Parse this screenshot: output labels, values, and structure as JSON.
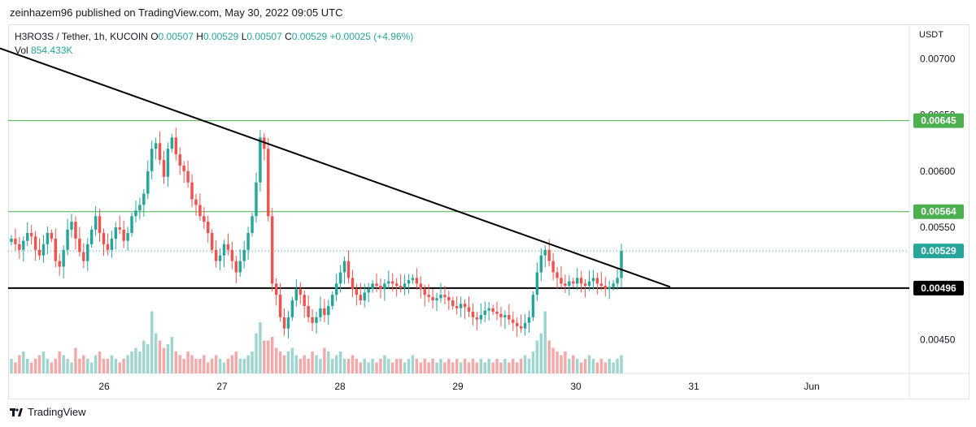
{
  "publisher_line": "zeinhazem96 published on TradingView.com, May 30, 2022 09:05 UTC",
  "legend": {
    "symbol": "H3RO3S / Tether, 1h, KUCOIN",
    "o_label": "O",
    "o_value": "0.00507",
    "h_label": "H",
    "h_value": "0.00529",
    "l_label": "L",
    "l_value": "0.00507",
    "c_label": "C",
    "c_value": "0.00529",
    "change": "+0.00025 (+4.96%)",
    "vol_label": "Vol",
    "vol_value": "854.433K"
  },
  "footer": {
    "brand": "TradingView"
  },
  "colors": {
    "up": "#26a69a",
    "down": "#ef5350",
    "level_line": "#4caf50",
    "support_line": "#000000",
    "up_vol": "#9fd5cf",
    "down_vol": "#f4a9a8"
  },
  "chart_data": {
    "type": "candlestick",
    "currency_label": "USDT",
    "y_ticks": [
      "0.00700",
      "0.00650",
      "0.00600",
      "0.00550",
      "0.00450"
    ],
    "ylim": [
      0.0042,
      0.0073
    ],
    "x_ticks": [
      "26",
      "27",
      "28",
      "29",
      "30",
      "31",
      "Jun"
    ],
    "price_labels": [
      {
        "value": 0.00645,
        "text": "0.00645",
        "style": "green"
      },
      {
        "value": 0.00564,
        "text": "0.00564",
        "style": "green"
      },
      {
        "value": 0.00529,
        "text": "0.00529",
        "style": "teal"
      },
      {
        "value": 0.00496,
        "text": "0.00496",
        "style": "black"
      }
    ],
    "horizontal_lines": [
      {
        "value": 0.00645,
        "color": "green"
      },
      {
        "value": 0.00564,
        "color": "green"
      },
      {
        "value": 0.00496,
        "color": "black"
      }
    ],
    "trend_line": {
      "from": {
        "day": "25.1",
        "price": 0.0071
      },
      "to": {
        "day": "30.8",
        "price": 0.00497
      }
    },
    "candles_close": [
      0.0054,
      0.00535,
      0.0053,
      0.00538,
      0.00545,
      0.00542,
      0.0053,
      0.00525,
      0.00535,
      0.00545,
      0.0054,
      0.0052,
      0.00515,
      0.0053,
      0.00548,
      0.00555,
      0.0054,
      0.00528,
      0.0052,
      0.00535,
      0.00548,
      0.0056,
      0.00545,
      0.00535,
      0.0053,
      0.0054,
      0.0055,
      0.00548,
      0.00538,
      0.00545,
      0.0056,
      0.00565,
      0.0057,
      0.0058,
      0.006,
      0.0062,
      0.00625,
      0.0061,
      0.00595,
      0.0062,
      0.0063,
      0.00615,
      0.00605,
      0.006,
      0.0059,
      0.00575,
      0.0057,
      0.0056,
      0.00555,
      0.00545,
      0.0053,
      0.0052,
      0.00525,
      0.00535,
      0.0053,
      0.0052,
      0.0051,
      0.0052,
      0.0053,
      0.00545,
      0.0056,
      0.0059,
      0.0063,
      0.0062,
      0.0056,
      0.005,
      0.0049,
      0.0047,
      0.0046,
      0.0047,
      0.00485,
      0.00495,
      0.0049,
      0.0048,
      0.0047,
      0.00465,
      0.0047,
      0.00478,
      0.00472,
      0.0048,
      0.0049,
      0.005,
      0.0051,
      0.0052,
      0.00505,
      0.00495,
      0.0049,
      0.00485,
      0.00492,
      0.00495,
      0.005,
      0.00498,
      0.00495,
      0.005,
      0.00502,
      0.005,
      0.00498,
      0.00496,
      0.005,
      0.00503,
      0.00505,
      0.005,
      0.00495,
      0.0049,
      0.00488,
      0.00485,
      0.00487,
      0.0049,
      0.00488,
      0.00485,
      0.0048,
      0.00478,
      0.00482,
      0.00479,
      0.00475,
      0.0047,
      0.00468,
      0.00472,
      0.00476,
      0.00478,
      0.00475,
      0.00473,
      0.0047,
      0.00472,
      0.00468,
      0.00465,
      0.00462,
      0.0046,
      0.00465,
      0.0047,
      0.0049,
      0.0051,
      0.00525,
      0.0053,
      0.0052,
      0.0051,
      0.00505,
      0.005,
      0.00498,
      0.00502,
      0.005,
      0.00505,
      0.005,
      0.00498,
      0.00502,
      0.00505,
      0.005,
      0.00498,
      0.00495,
      0.00497,
      0.005,
      0.00505,
      0.00529
    ],
    "volumes_relative": [
      0.2,
      0.15,
      0.25,
      0.3,
      0.2,
      0.15,
      0.2,
      0.25,
      0.3,
      0.2,
      0.15,
      0.2,
      0.3,
      0.25,
      0.2,
      0.15,
      0.35,
      0.2,
      0.25,
      0.2,
      0.15,
      0.25,
      0.3,
      0.2,
      0.2,
      0.25,
      0.2,
      0.15,
      0.2,
      0.25,
      0.3,
      0.35,
      0.3,
      0.45,
      0.4,
      0.85,
      0.55,
      0.45,
      0.35,
      0.4,
      0.5,
      0.3,
      0.25,
      0.2,
      0.3,
      0.25,
      0.2,
      0.2,
      0.25,
      0.15,
      0.2,
      0.25,
      0.2,
      0.15,
      0.2,
      0.25,
      0.3,
      0.2,
      0.2,
      0.25,
      0.3,
      0.55,
      0.7,
      0.45,
      0.45,
      0.5,
      0.35,
      0.3,
      0.25,
      0.3,
      0.35,
      0.25,
      0.2,
      0.25,
      0.2,
      0.3,
      0.25,
      0.2,
      0.35,
      0.3,
      0.2,
      0.25,
      0.3,
      0.2,
      0.2,
      0.25,
      0.2,
      0.15,
      0.2,
      0.15,
      0.2,
      0.15,
      0.2,
      0.25,
      0.2,
      0.15,
      0.2,
      0.2,
      0.15,
      0.2,
      0.25,
      0.2,
      0.15,
      0.2,
      0.15,
      0.2,
      0.15,
      0.2,
      0.15,
      0.2,
      0.15,
      0.2,
      0.15,
      0.2,
      0.15,
      0.2,
      0.15,
      0.2,
      0.15,
      0.2,
      0.15,
      0.2,
      0.15,
      0.2,
      0.15,
      0.2,
      0.15,
      0.2,
      0.25,
      0.2,
      0.3,
      0.45,
      0.55,
      0.85,
      0.45,
      0.35,
      0.3,
      0.25,
      0.3,
      0.2,
      0.25,
      0.2,
      0.15,
      0.2,
      0.25,
      0.2,
      0.15,
      0.2,
      0.15,
      0.2,
      0.15,
      0.2,
      0.25
    ]
  }
}
